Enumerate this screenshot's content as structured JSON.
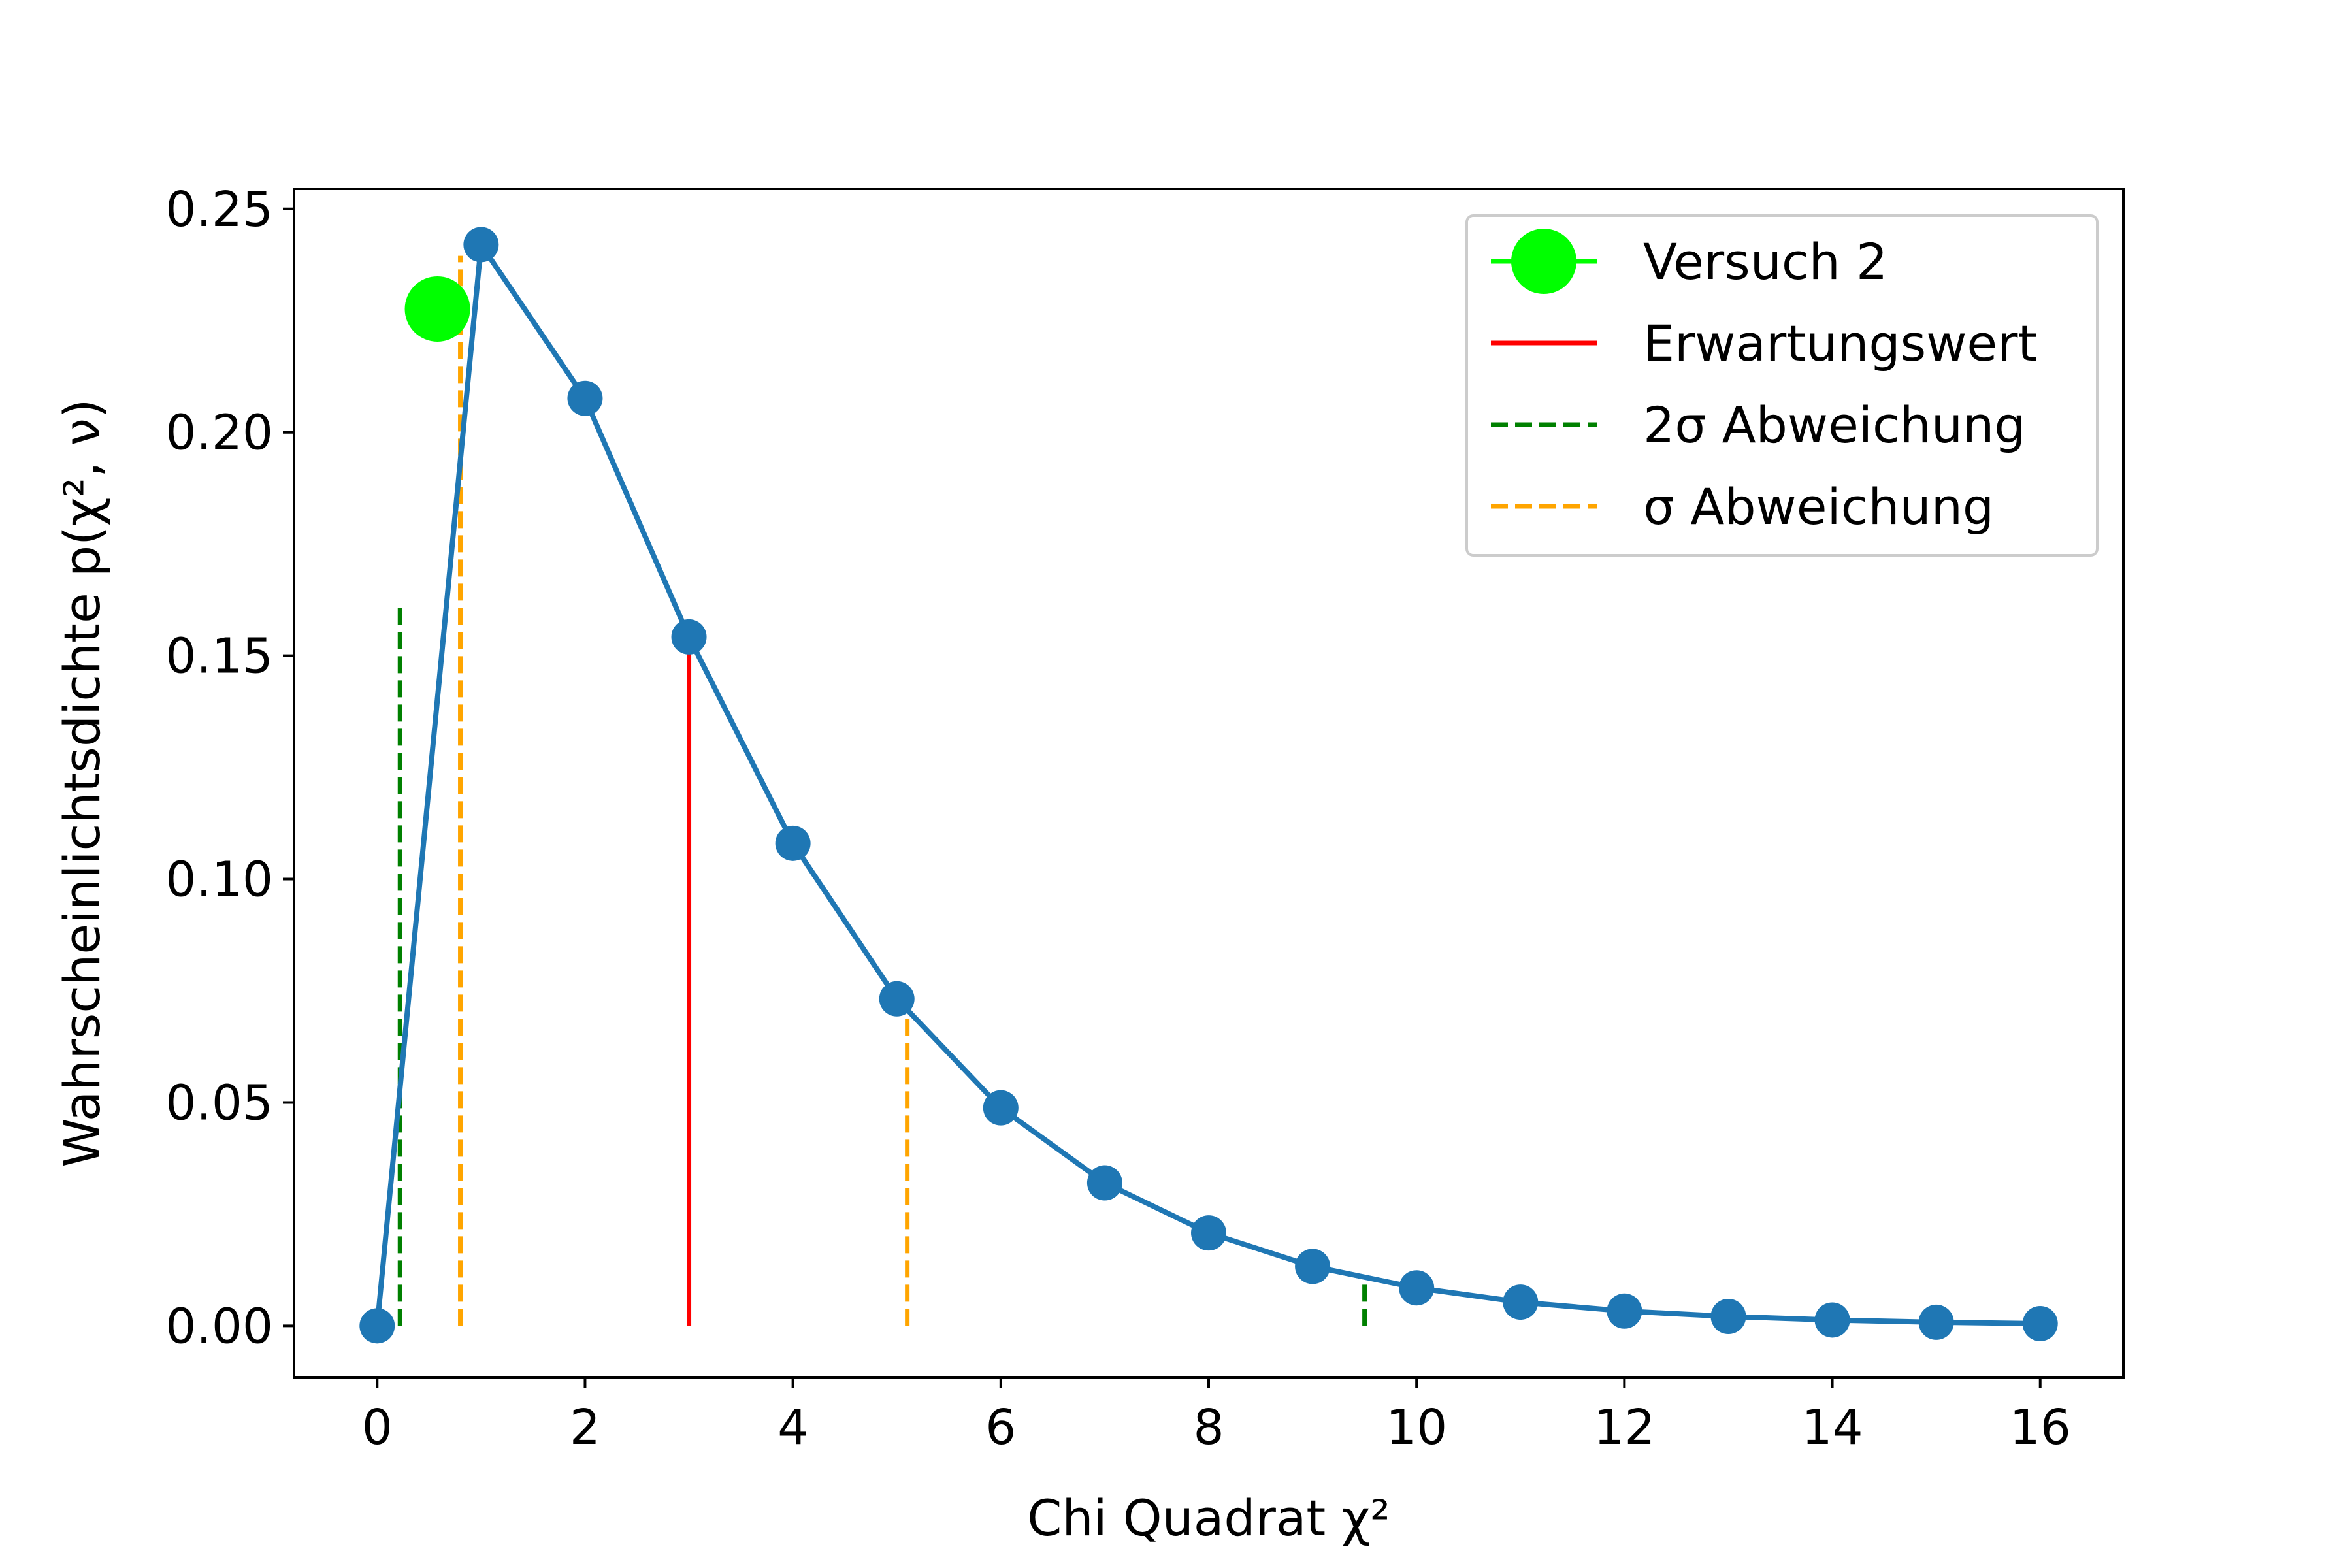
{
  "chart_data": {
    "type": "line",
    "title": "",
    "xlabel": "Chi Quadrat χ²",
    "ylabel": "Wahrscheinlichtsdichte p(χ², ν)",
    "xlim": [
      -0.8,
      16.8
    ],
    "ylim": [
      -0.0115,
      0.2545
    ],
    "xticks": [
      0,
      2,
      4,
      6,
      8,
      10,
      12,
      14,
      16
    ],
    "xtick_labels": [
      "0",
      "2",
      "4",
      "6",
      "8",
      "10",
      "12",
      "14",
      "16"
    ],
    "yticks": [
      0.0,
      0.05,
      0.1,
      0.15,
      0.2,
      0.25
    ],
    "ytick_labels": [
      "0.00",
      "0.05",
      "0.10",
      "0.15",
      "0.20",
      "0.25"
    ],
    "grid": false,
    "legend_position": "top-right",
    "series": [
      {
        "type": "line-markers",
        "color": "#1f77b4",
        "x": [
          0,
          1,
          2,
          3,
          4,
          5,
          6,
          7,
          8,
          9,
          10,
          11,
          12,
          13,
          14,
          15,
          16
        ],
        "values": [
          0.0,
          0.242,
          0.2076,
          0.1542,
          0.108,
          0.0732,
          0.0488,
          0.032,
          0.0208,
          0.0133,
          0.0085,
          0.0053,
          0.0033,
          0.0021,
          0.0013,
          0.0008,
          0.0005
        ]
      },
      {
        "name": "Versuch 2",
        "type": "point",
        "color": "#00ff00",
        "x": [
          0.58
        ],
        "values": [
          0.2276
        ]
      }
    ],
    "vlines": [
      {
        "name": "Erwartungswert",
        "color": "#ff0000",
        "style": "solid",
        "segments": [
          {
            "x": 3.0,
            "y_top": 0.1542
          }
        ]
      },
      {
        "name": "2σ Abweichung",
        "color": "#008000",
        "style": "dashed",
        "segments": [
          {
            "x": 0.22,
            "y_top": 0.162
          },
          {
            "x": 9.5,
            "y_top": 0.0105
          }
        ]
      },
      {
        "name": "σ Abweichung",
        "color": "#ffa500",
        "style": "dashed",
        "segments": [
          {
            "x": 0.8,
            "y_top": 0.2395
          },
          {
            "x": 5.1,
            "y_top": 0.0695
          }
        ]
      }
    ],
    "legend": [
      {
        "key": "versuch",
        "label": "Versuch 2",
        "color": "#00ff00",
        "kind": "marker-line"
      },
      {
        "key": "erwartung",
        "label": "Erwartungswert",
        "color": "#ff0000",
        "kind": "solid"
      },
      {
        "key": "two-sigma",
        "label": "2σ Abweichung",
        "color": "#008000",
        "kind": "dashed"
      },
      {
        "key": "sigma",
        "label": "σ Abweichung",
        "color": "#ffa500",
        "kind": "dashed"
      }
    ]
  }
}
